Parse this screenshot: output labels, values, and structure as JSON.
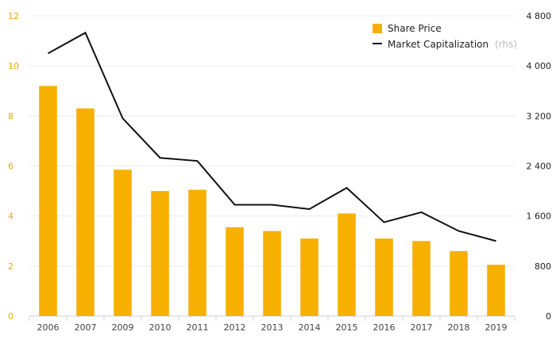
{
  "chart_data": {
    "type": "bar+line",
    "categories": [
      "2006",
      "2007",
      "2009",
      "2010",
      "2011",
      "2012",
      "2013",
      "2014",
      "2015",
      "2016",
      "2017",
      "2018",
      "2019"
    ],
    "series": [
      {
        "name": "Share Price",
        "type": "bar",
        "axis": "left",
        "color": "#f7b000",
        "values": [
          9.2,
          8.3,
          5.85,
          5.0,
          5.05,
          3.55,
          3.4,
          3.1,
          4.1,
          3.1,
          3.0,
          2.6,
          2.05
        ]
      },
      {
        "name": "Market Capitalization",
        "legend_suffix": "(rhs)",
        "type": "line",
        "axis": "right",
        "color": "#111111",
        "values": [
          4200,
          4530,
          3160,
          2530,
          2480,
          1780,
          1780,
          1710,
          2050,
          1500,
          1660,
          1360,
          1200
        ]
      }
    ],
    "y_left": {
      "min": 0,
      "max": 12,
      "ticks": [
        "0",
        "2",
        "4",
        "6",
        "8",
        "10",
        "12"
      ]
    },
    "y_right": {
      "min": 0,
      "max": 4800,
      "ticks": [
        "0",
        "800",
        "1 600",
        "2 400",
        "3 200",
        "4 000",
        "4 800"
      ]
    },
    "grid": true,
    "legend": "top-right"
  }
}
